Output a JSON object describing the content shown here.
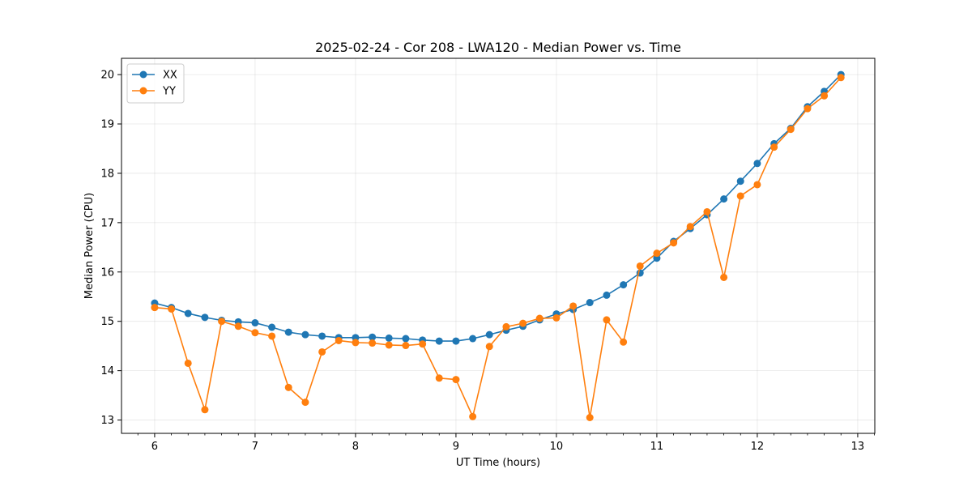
{
  "chart_data": {
    "type": "line",
    "title": "2025-02-24 - Cor 208 - LWA120 - Median Power vs. Time",
    "xlabel": "UT Time (hours)",
    "ylabel": "Median Power (CPU)",
    "xlim": [
      5.67,
      13.17
    ],
    "ylim": [
      12.73,
      20.33
    ],
    "xticks": [
      6,
      7,
      8,
      9,
      10,
      11,
      12,
      13
    ],
    "yticks": [
      13,
      14,
      15,
      16,
      17,
      18,
      19,
      20
    ],
    "grid": true,
    "legend_position": "top-left",
    "x": [
      6.0,
      6.167,
      6.333,
      6.5,
      6.667,
      6.833,
      7.0,
      7.167,
      7.333,
      7.5,
      7.667,
      7.833,
      8.0,
      8.167,
      8.333,
      8.5,
      8.667,
      8.833,
      9.0,
      9.167,
      9.333,
      9.5,
      9.667,
      9.833,
      10.0,
      10.167,
      10.333,
      10.5,
      10.667,
      10.833,
      11.0,
      11.167,
      11.333,
      11.5,
      11.667,
      11.833,
      12.0,
      12.167,
      12.333,
      12.5,
      12.667,
      12.833
    ],
    "series": [
      {
        "name": "XX",
        "color": "#1f77b4",
        "values": [
          15.37,
          15.28,
          15.16,
          15.08,
          15.02,
          14.99,
          14.97,
          14.88,
          14.78,
          14.73,
          14.7,
          14.67,
          14.67,
          14.68,
          14.66,
          14.65,
          14.62,
          14.6,
          14.6,
          14.65,
          14.73,
          14.82,
          14.9,
          15.03,
          15.15,
          15.24,
          15.38,
          15.53,
          15.74,
          15.98,
          16.28,
          16.62,
          16.88,
          17.16,
          17.48,
          17.84,
          18.2,
          18.6,
          18.91,
          19.35,
          19.66,
          20.0
        ]
      },
      {
        "name": "YY",
        "color": "#ff7f0e",
        "values": [
          15.28,
          15.25,
          14.15,
          13.21,
          15.0,
          14.9,
          14.77,
          14.7,
          13.66,
          13.36,
          14.38,
          14.61,
          14.57,
          14.56,
          14.52,
          14.51,
          14.54,
          13.85,
          13.82,
          13.07,
          14.49,
          14.89,
          14.96,
          15.06,
          15.07,
          15.31,
          13.05,
          15.03,
          14.58,
          16.12,
          16.38,
          16.59,
          16.92,
          17.22,
          15.89,
          17.54,
          17.77,
          18.53,
          18.89,
          19.31,
          19.57,
          19.94
        ]
      }
    ]
  }
}
